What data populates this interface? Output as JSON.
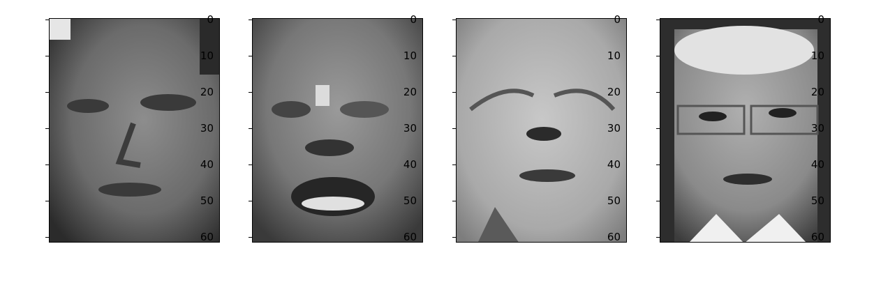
{
  "yaxis_ticks": [
    "0",
    "10",
    "20",
    "30",
    "40",
    "50",
    "60"
  ],
  "image_grid": [
    {
      "title": "",
      "description_icon": "face-photo"
    },
    {
      "title": "",
      "description_icon": "face-photo"
    },
    {
      "title": "",
      "description_icon": "face-photo"
    },
    {
      "title": "",
      "description_icon": "face-photo"
    }
  ]
}
